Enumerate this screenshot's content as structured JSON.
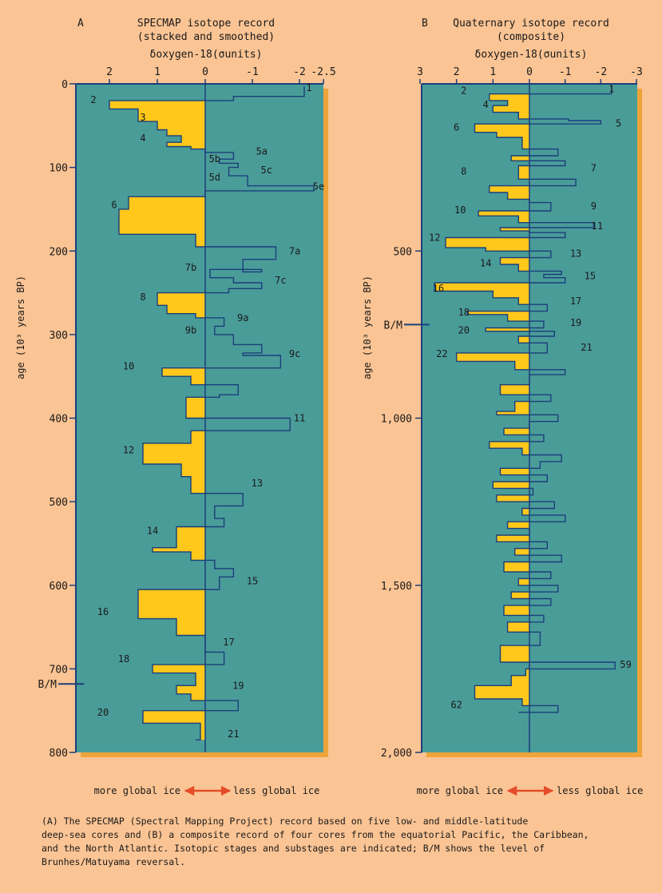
{
  "chart_data": [
    {
      "type": "line",
      "panel_letter": "A",
      "title": "SPECMAP isotope record",
      "subtitle": "(stacked and smoothed)",
      "xlabel": "δoxygen-18(σunits)",
      "ylabel": "age (10³ years BP)",
      "x_ticks": [
        2,
        1,
        0,
        -1,
        -2,
        -2.5
      ],
      "x_tick_labels": [
        "2",
        "1",
        "0",
        "-1",
        "-2",
        "-2.5"
      ],
      "xlim": [
        2.6,
        -2.5
      ],
      "y_ticks": [
        0,
        100,
        200,
        300,
        400,
        500,
        600,
        700,
        800
      ],
      "y_tick_labels": [
        "0",
        "100",
        "200",
        "300",
        "400",
        "500",
        "600",
        "700",
        "800"
      ],
      "ylim": [
        0,
        800
      ],
      "marker": {
        "label": "B/M",
        "age": 718
      },
      "series": [
        {
          "x": [
            -2.1,
            -0.6,
            2.0,
            1.4,
            1.0,
            0.8,
            0.5,
            0.8,
            0.3,
            0.0,
            -0.6,
            -0.3,
            -0.7,
            -0.5,
            -0.9,
            -2.3,
            0.0,
            1.6,
            1.8,
            0.2,
            -1.5,
            -0.8,
            -1.2,
            -0.1,
            -0.6,
            -1.2,
            -0.5,
            1.0,
            0.8,
            0.2,
            -0.4,
            -0.2,
            -0.6,
            -1.2,
            -0.8,
            -1.6,
            0.9,
            0.3,
            -0.7,
            -0.3,
            0.4,
            -1.8,
            0.3,
            1.3,
            0.5,
            0.3,
            -0.8,
            -0.2,
            -0.4,
            0.6,
            1.1,
            0.3,
            -0.2,
            -0.6,
            -0.3,
            1.4,
            0.6,
            0.0,
            -0.4,
            1.1,
            0.2,
            0.6,
            0.3,
            -0.7,
            1.3,
            0.1,
            0.2
          ],
          "y": [
            3,
            15,
            20,
            30,
            45,
            55,
            62,
            70,
            75,
            78,
            82,
            90,
            95,
            100,
            110,
            122,
            128,
            135,
            150,
            180,
            195,
            210,
            225,
            222,
            232,
            238,
            245,
            250,
            265,
            275,
            280,
            290,
            300,
            312,
            322,
            325,
            340,
            350,
            360,
            372,
            375,
            400,
            415,
            430,
            455,
            470,
            490,
            505,
            520,
            530,
            555,
            560,
            570,
            580,
            590,
            605,
            640,
            660,
            680,
            695,
            705,
            720,
            730,
            738,
            750,
            765,
            785
          ]
        }
      ],
      "annotations": [
        {
          "label": "1",
          "x": -2.2,
          "y": 5
        },
        {
          "label": "2",
          "x": 2.3,
          "y": 19
        },
        {
          "label": "3",
          "x": 1.3,
          "y": 40
        },
        {
          "label": "4",
          "x": 1.3,
          "y": 65
        },
        {
          "label": "5a",
          "x": -1.2,
          "y": 81
        },
        {
          "label": "5b",
          "x": -0.2,
          "y": 90
        },
        {
          "label": "5c",
          "x": -1.3,
          "y": 103
        },
        {
          "label": "5d",
          "x": -0.2,
          "y": 112
        },
        {
          "label": "5e",
          "x": -2.4,
          "y": 123
        },
        {
          "label": "6",
          "x": 1.9,
          "y": 145
        },
        {
          "label": "7a",
          "x": -1.9,
          "y": 200
        },
        {
          "label": "7b",
          "x": 0.3,
          "y": 220
        },
        {
          "label": "7c",
          "x": -1.6,
          "y": 235
        },
        {
          "label": "8",
          "x": 1.3,
          "y": 255
        },
        {
          "label": "9a",
          "x": -0.8,
          "y": 280
        },
        {
          "label": "9b",
          "x": 0.3,
          "y": 295
        },
        {
          "label": "9c",
          "x": -1.9,
          "y": 323
        },
        {
          "label": "10",
          "x": 1.6,
          "y": 338
        },
        {
          "label": "11",
          "x": -2.0,
          "y": 400
        },
        {
          "label": "12",
          "x": 1.6,
          "y": 438
        },
        {
          "label": "13",
          "x": -1.1,
          "y": 478
        },
        {
          "label": "14",
          "x": 1.1,
          "y": 535
        },
        {
          "label": "15",
          "x": -1.0,
          "y": 595
        },
        {
          "label": "16",
          "x": 2.1,
          "y": 632
        },
        {
          "label": "17",
          "x": -0.5,
          "y": 668
        },
        {
          "label": "18",
          "x": 1.7,
          "y": 688
        },
        {
          "label": "19",
          "x": -0.7,
          "y": 720
        },
        {
          "label": "20",
          "x": 2.1,
          "y": 752
        },
        {
          "label": "21",
          "x": -0.6,
          "y": 778
        }
      ]
    },
    {
      "type": "line",
      "panel_letter": "B",
      "title": "Quaternary isotope record",
      "subtitle": "(composite)",
      "xlabel": "δoxygen-18(σunits)",
      "ylabel": "age (10³ years BP)",
      "x_ticks": [
        3,
        2,
        1,
        0,
        -1,
        -2,
        -3
      ],
      "x_tick_labels": [
        "3",
        "2",
        "1",
        "0",
        "-1",
        "-2",
        "-3"
      ],
      "xlim": [
        2.9,
        -2.85
      ],
      "y_ticks": [
        500,
        1000,
        1500,
        2000
      ],
      "y_tick_labels": [
        "500",
        "1,000",
        "1,500",
        "2,000"
      ],
      "ylim": [
        0,
        2000
      ],
      "marker": {
        "label": "B/M",
        "age": 720
      },
      "series": [
        {
          "x": [
            -2.3,
            1.1,
            0.6,
            1.0,
            0.3,
            -1.1,
            -2.0,
            1.5,
            0.9,
            0.2,
            -0.8,
            0.5,
            -1.0,
            0.3,
            -1.3,
            1.1,
            0.6,
            0.0,
            -0.6,
            1.4,
            0.3,
            -1.8,
            0.8,
            0.0,
            -1.0,
            2.3,
            1.2,
            -0.6,
            0.8,
            0.3,
            -0.9,
            -0.4,
            -1.0,
            2.6,
            1.0,
            0.3,
            -0.5,
            1.7,
            0.6,
            -0.4,
            1.2,
            -0.7,
            0.3,
            -0.5,
            2.0,
            0.4,
            -1.0,
            0.0,
            0.8,
            -0.6,
            0.4,
            0.9,
            -0.8,
            0.0,
            0.7,
            -0.4,
            1.1,
            0.2,
            -0.9,
            -0.3,
            0.8,
            -0.5,
            1.0,
            -0.1,
            0.9,
            -0.7,
            0.2,
            -1.0,
            0.6,
            0.0,
            0.9,
            -0.5,
            0.4,
            -0.9,
            0.7,
            -0.6,
            0.3,
            -0.8,
            0.5,
            -0.6,
            0.7,
            -0.4,
            0.6,
            -0.3,
            0.8,
            -2.4,
            0.1,
            0.5,
            1.5,
            0.2,
            -0.8,
            0.3
          ],
          "y": [
            5,
            30,
            50,
            65,
            85,
            105,
            110,
            120,
            145,
            160,
            195,
            215,
            230,
            245,
            285,
            305,
            325,
            345,
            355,
            380,
            395,
            415,
            430,
            440,
            445,
            460,
            490,
            500,
            520,
            540,
            560,
            570,
            580,
            595,
            620,
            640,
            660,
            680,
            690,
            710,
            730,
            740,
            755,
            775,
            805,
            830,
            855,
            870,
            900,
            930,
            950,
            980,
            990,
            1010,
            1030,
            1050,
            1070,
            1090,
            1110,
            1130,
            1150,
            1170,
            1190,
            1210,
            1230,
            1250,
            1270,
            1290,
            1310,
            1330,
            1350,
            1370,
            1390,
            1410,
            1430,
            1460,
            1480,
            1500,
            1520,
            1540,
            1560,
            1590,
            1610,
            1640,
            1680,
            1730,
            1750,
            1770,
            1800,
            1840,
            1860,
            1880
          ]
        }
      ],
      "annotations": [
        {
          "label": "1",
          "x": -2.3,
          "y": 15
        },
        {
          "label": "2",
          "x": 1.8,
          "y": 20
        },
        {
          "label": "4",
          "x": 1.2,
          "y": 62
        },
        {
          "label": "5",
          "x": -2.5,
          "y": 118
        },
        {
          "label": "6",
          "x": 2.0,
          "y": 130
        },
        {
          "label": "7",
          "x": -1.8,
          "y": 252
        },
        {
          "label": "8",
          "x": 1.8,
          "y": 262
        },
        {
          "label": "9",
          "x": -1.8,
          "y": 365
        },
        {
          "label": "10",
          "x": 1.9,
          "y": 377
        },
        {
          "label": "11",
          "x": -1.9,
          "y": 425
        },
        {
          "label": "12",
          "x": 2.6,
          "y": 460
        },
        {
          "label": "13",
          "x": -1.3,
          "y": 508
        },
        {
          "label": "14",
          "x": 1.2,
          "y": 537
        },
        {
          "label": "15",
          "x": -1.7,
          "y": 575
        },
        {
          "label": "16",
          "x": 2.5,
          "y": 612
        },
        {
          "label": "17",
          "x": -1.3,
          "y": 650
        },
        {
          "label": "18",
          "x": 1.8,
          "y": 683
        },
        {
          "label": "19",
          "x": -1.3,
          "y": 715
        },
        {
          "label": "20",
          "x": 1.8,
          "y": 737
        },
        {
          "label": "21",
          "x": -1.6,
          "y": 788
        },
        {
          "label": "22",
          "x": 2.4,
          "y": 808
        },
        {
          "label": "59",
          "x": -2.7,
          "y": 1737
        },
        {
          "label": "62",
          "x": 2.0,
          "y": 1858
        }
      ]
    }
  ],
  "legend": {
    "more": "more global ice",
    "less": "less global ice"
  },
  "caption": [
    "(A) The SPECMAP (Spectral Mapping Project) record based on five low- and middle-latitude",
    "deep-sea cores and (B) a composite record of four cores from the equatorial Pacific, the Caribbean,",
    "and the North Atlantic.  Isotopic stages and substages are indicated; B/M shows the level of",
    "Brunhes/Matuyama reversal."
  ],
  "colors": {
    "background": "#fbc494",
    "plot": "#4a9c99",
    "fill": "#ffc81a",
    "line": "#1b3f7a",
    "shadow": "#efa43a",
    "arrow": "#e44c2a"
  }
}
